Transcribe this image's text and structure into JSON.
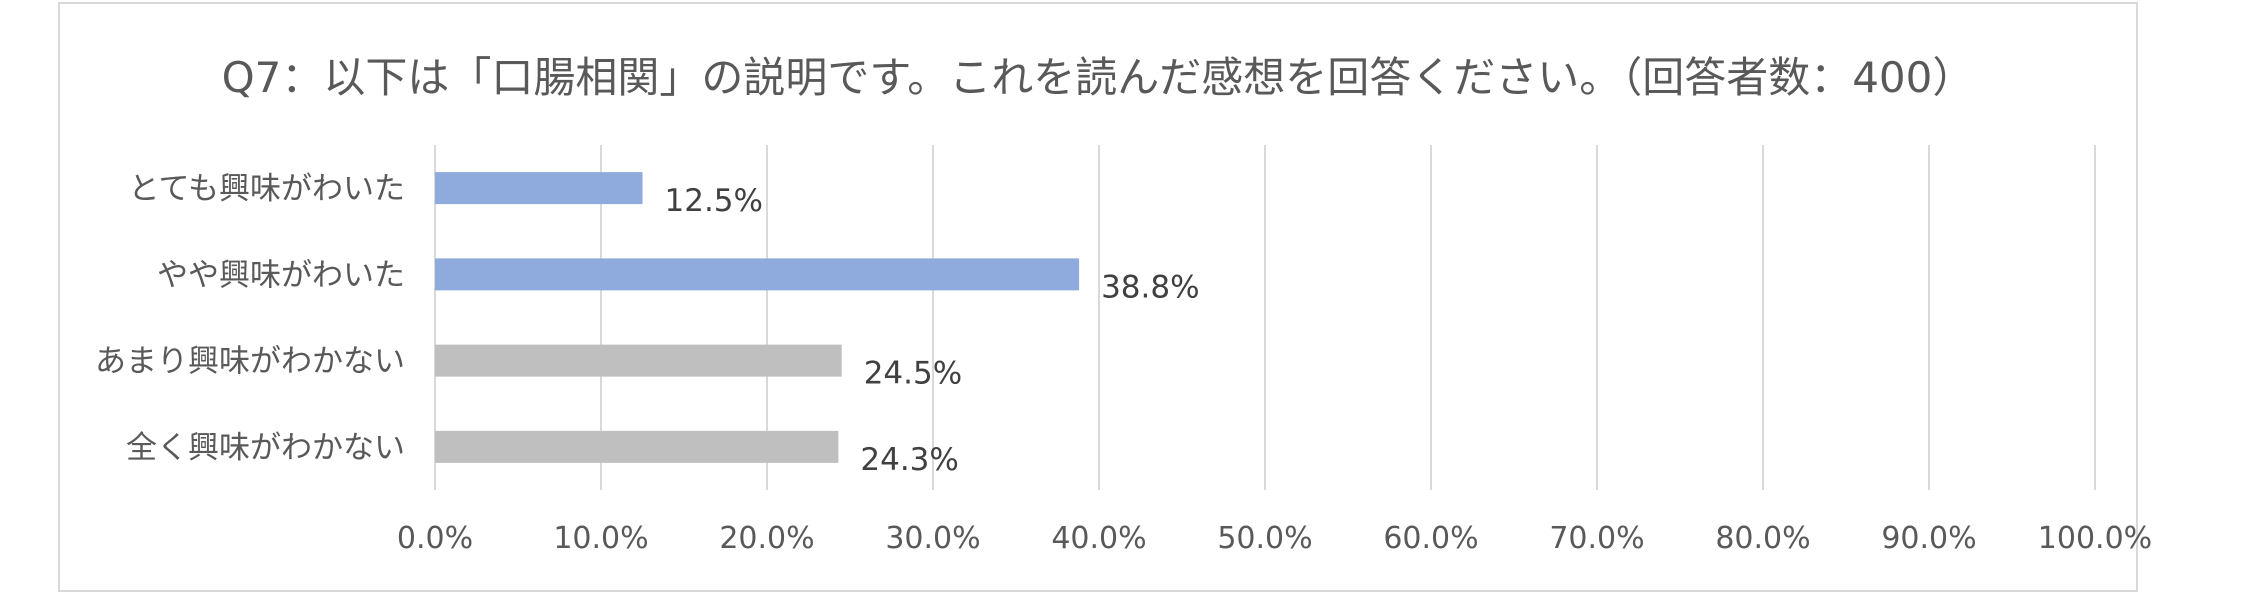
{
  "chart_data": {
    "type": "bar",
    "orientation": "horizontal",
    "title": "Q7：以下は「口腸相関」の説明です。これを読んだ感想を回答ください。（回答者数：400）",
    "categories": [
      "とても興味がわいた",
      "やや興味がわいた",
      "あまり興味がわかない",
      "全く興味がわかない"
    ],
    "values": [
      12.5,
      38.8,
      24.5,
      24.3
    ],
    "value_labels": [
      "12.5%",
      "38.8%",
      "24.5%",
      "24.3%"
    ],
    "bar_colors": [
      "#8faadc",
      "#8faadc",
      "#bfbfbf",
      "#bfbfbf"
    ],
    "xlim": [
      0,
      100
    ],
    "xticks": [
      0,
      10,
      20,
      30,
      40,
      50,
      60,
      70,
      80,
      90,
      100
    ],
    "xtick_labels": [
      "0.0%",
      "10.0%",
      "20.0%",
      "30.0%",
      "40.0%",
      "50.0%",
      "60.0%",
      "70.0%",
      "80.0%",
      "90.0%",
      "100.0%"
    ],
    "grid": true,
    "gridline_color": "#d9d9d9",
    "xlabel": "",
    "ylabel": ""
  }
}
